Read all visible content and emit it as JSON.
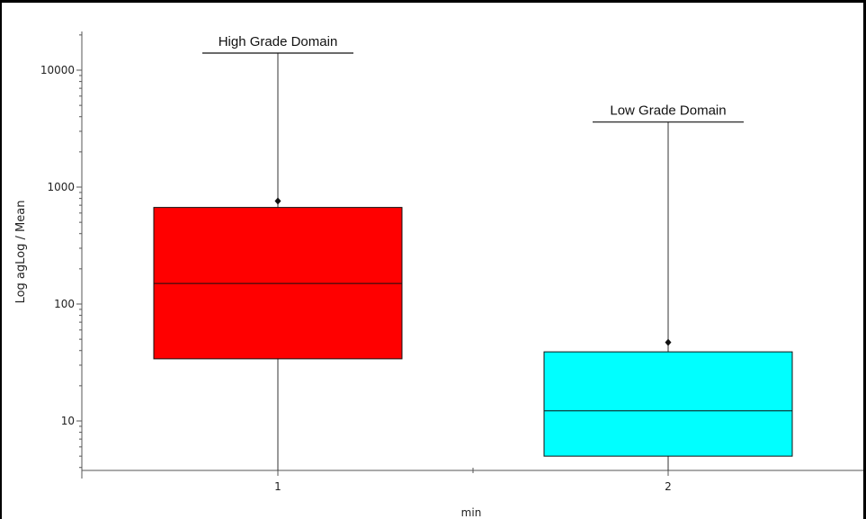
{
  "chart_data": {
    "type": "box",
    "title": "",
    "xlabel": "min",
    "ylabel": "Log agLog / Mean",
    "y_scale": "log",
    "ylim": [
      3.7,
      20000
    ],
    "categories": [
      "1",
      "2"
    ],
    "y_ticks": [
      "10",
      "100",
      "1000",
      "10000"
    ],
    "boxes": [
      {
        "category": "1",
        "label": "High Grade Domain",
        "whisker_low": 3.7,
        "q1": 34,
        "median": 150,
        "q3": 670,
        "whisker_high": 14000,
        "mean": 760,
        "color": "#ff0000"
      },
      {
        "category": "2",
        "label": "Low Grade Domain",
        "whisker_low": 3.7,
        "q1": 5,
        "median": 12.2,
        "q3": 39,
        "whisker_high": 3600,
        "mean": 47,
        "color": "#00ffff"
      }
    ]
  }
}
